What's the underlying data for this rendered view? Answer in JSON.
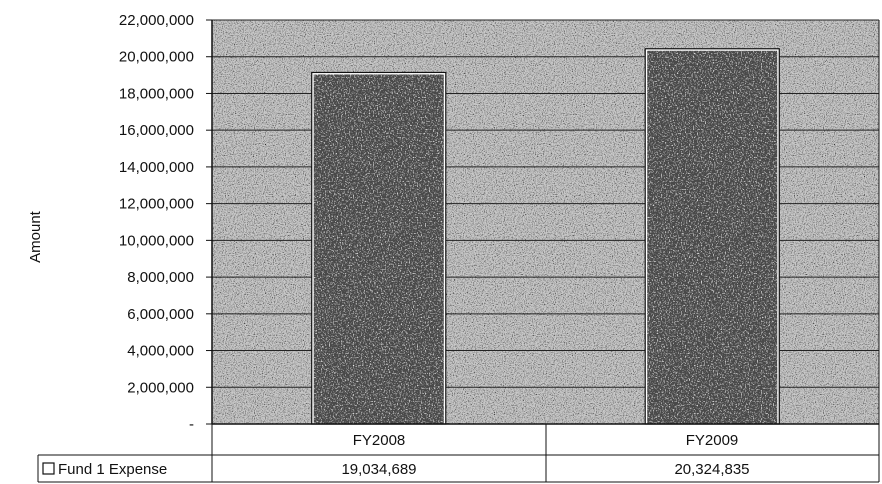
{
  "chart_data": {
    "type": "bar",
    "ylabel": "Amount",
    "xlabel": "",
    "categories": [
      "FY2008",
      "FY2009"
    ],
    "series": [
      {
        "name": "Fund 1 Expense",
        "values": [
          19034689,
          20324835
        ]
      }
    ],
    "value_labels": [
      "19,034,689",
      "20,324,835"
    ],
    "ylim": [
      0,
      22000000
    ],
    "y_ticks": [
      0,
      2000000,
      4000000,
      6000000,
      8000000,
      10000000,
      12000000,
      14000000,
      16000000,
      18000000,
      20000000,
      22000000
    ],
    "y_tick_labels": [
      "-",
      "2,000,000",
      "4,000,000",
      "6,000,000",
      "8,000,000",
      "10,000,000",
      "12,000,000",
      "14,000,000",
      "16,000,000",
      "18,000,000",
      "20,000,000",
      "22,000,000"
    ],
    "grid": true,
    "legend": "data-table",
    "colors": {
      "plot_bg": "#c9c9c9",
      "bar": "#4a4a4a",
      "grid": "#222222"
    }
  }
}
